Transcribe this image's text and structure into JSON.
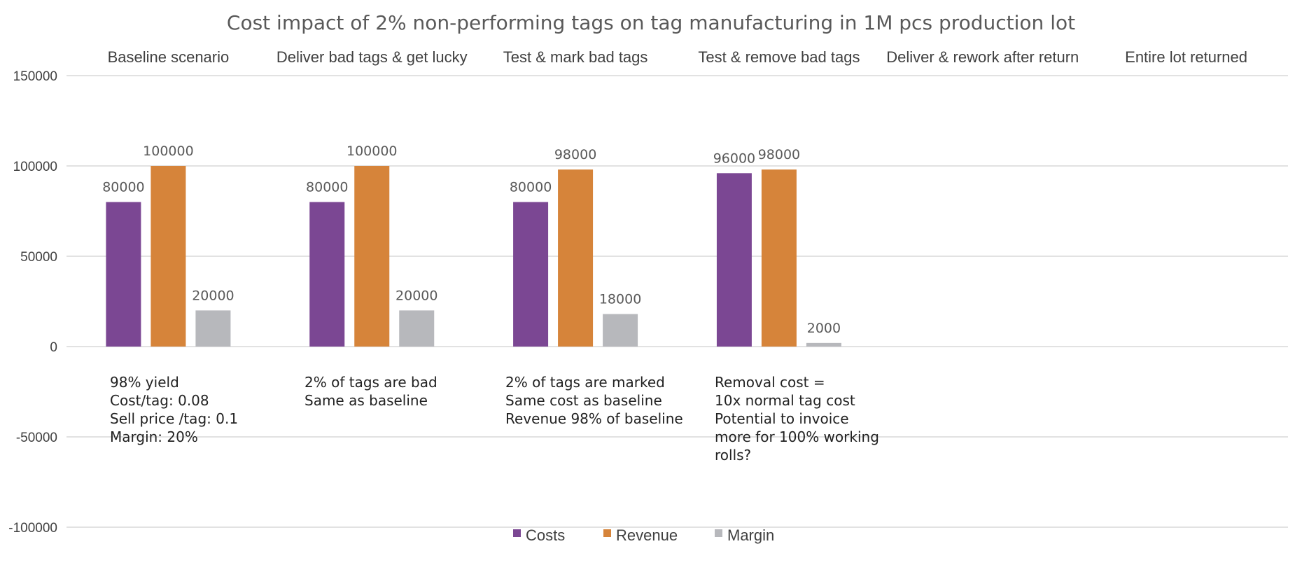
{
  "chart_data": {
    "type": "bar",
    "title": "Cost impact of 2% non-performing tags on tag manufacturing in 1M pcs production lot",
    "categories": [
      "Baseline scenario",
      "Deliver bad tags & get lucky",
      "Test & mark bad tags",
      "Test & remove bad tags",
      "Deliver & rework after return",
      "Entire lot returned"
    ],
    "series": [
      {
        "name": "Costs",
        "color": "#7B4793",
        "values": [
          80000,
          80000,
          80000,
          96000,
          null,
          null
        ]
      },
      {
        "name": "Revenue",
        "color": "#D6843A",
        "values": [
          100000,
          100000,
          98000,
          98000,
          null,
          null
        ]
      },
      {
        "name": "Margin",
        "color": "#B7B8BC",
        "values": [
          20000,
          20000,
          18000,
          2000,
          null,
          null
        ]
      }
    ],
    "ylim": [
      -100000,
      150000
    ],
    "yticks": [
      "150000",
      "100000",
      "50000",
      "0",
      "-50000",
      "-100000"
    ],
    "grid": true,
    "legend": "bottom",
    "annotations": [
      [
        "98% yield",
        "Cost/tag: 0.08",
        "Sell price /tag: 0.1",
        "Margin: 20%"
      ],
      [
        "2% of tags are bad",
        "Same as baseline"
      ],
      [
        "2% of tags are marked",
        "Same cost as baseline",
        "Revenue 98% of baseline"
      ],
      [
        "Removal cost =",
        "10x normal tag cost",
        "Potential to invoice",
        "more for 100% working",
        "rolls?"
      ],
      [],
      []
    ]
  }
}
